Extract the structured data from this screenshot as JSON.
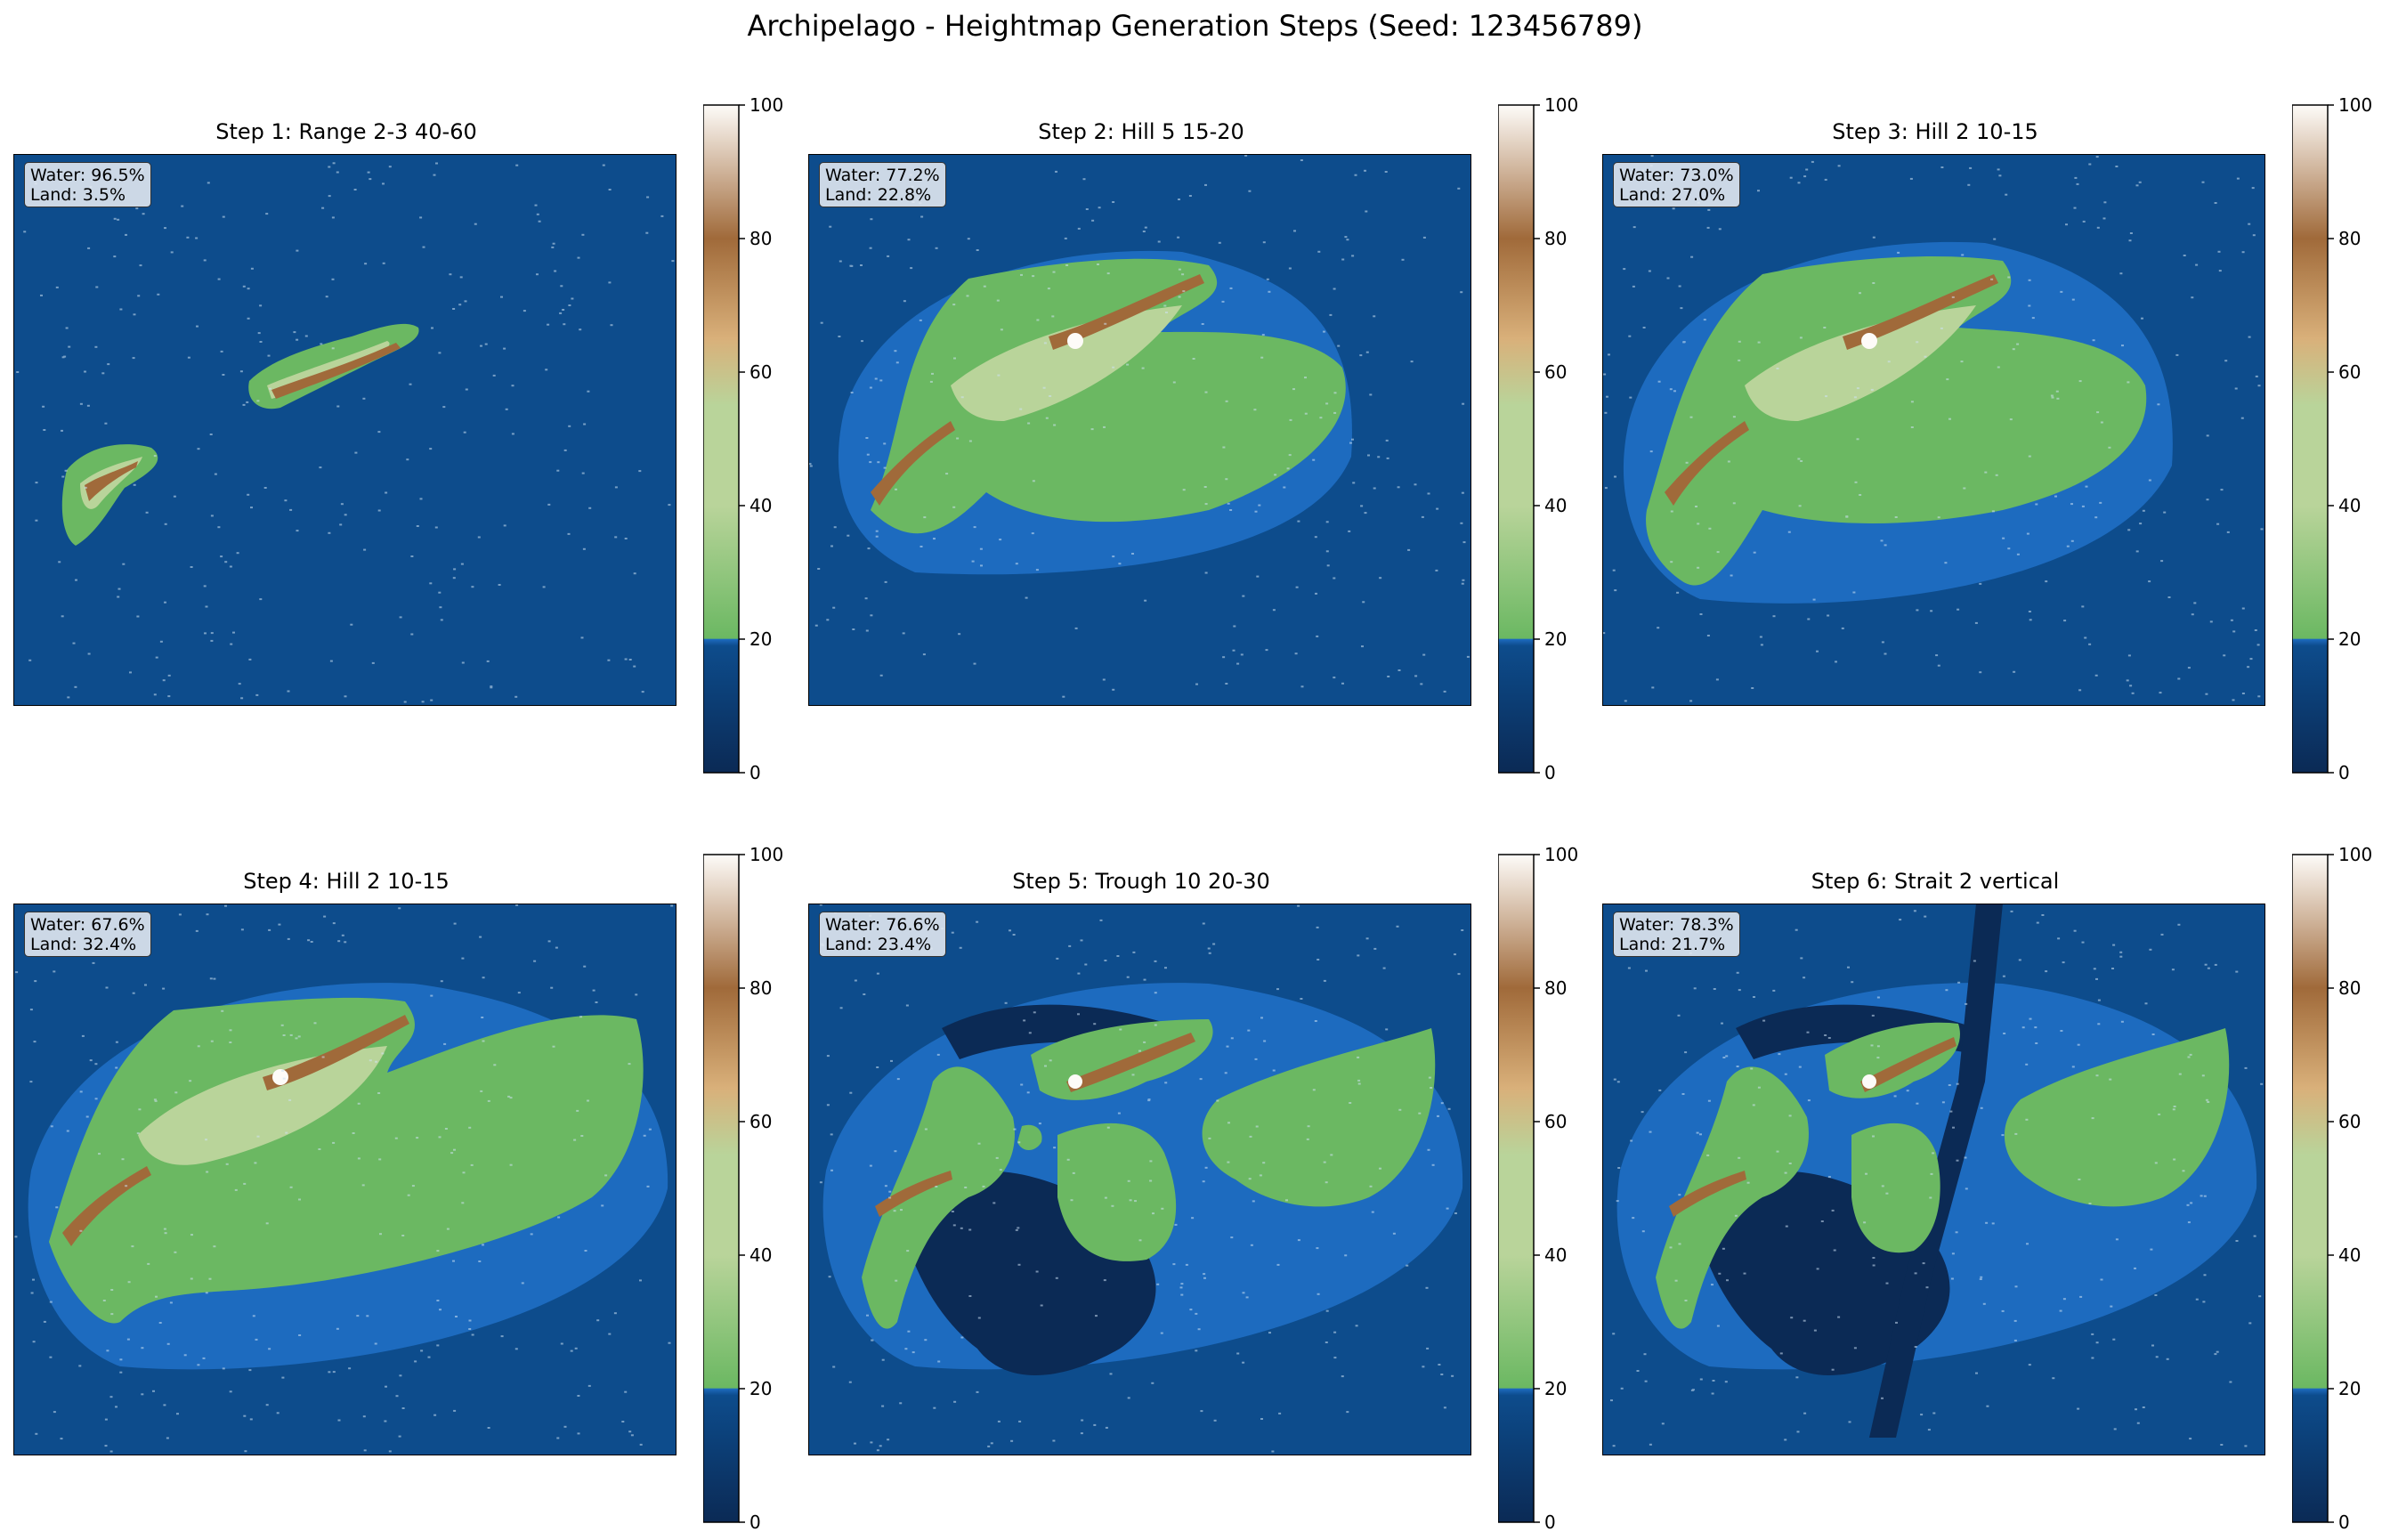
{
  "title": "Archipelago - Heightmap Generation Steps (Seed: 123456789)",
  "colorbar": {
    "ticks": [
      "0",
      "20",
      "40",
      "60",
      "80",
      "100"
    ],
    "range": [
      0,
      100
    ],
    "sea_level": 20
  },
  "colors": {
    "deep_water": "#0b2a55",
    "water": "#0d4c8c",
    "shallow": "#1d6bbf",
    "lowland": "#6bb862",
    "midland": "#b9d49a",
    "highland": "#d9b07a",
    "mountain": "#a06a3a",
    "peak": "#fdfbf8"
  },
  "chart_data": [
    {
      "type": "heatmap",
      "title": "Step 1: Range 2-3 40-60",
      "stats": {
        "water": "Water: 96.5%",
        "land": "Land: 3.5%"
      },
      "water_pct": 96.5,
      "land_pct": 3.5,
      "zlim": [
        0,
        100
      ],
      "colorbar_ticks": [
        0,
        20,
        40,
        60,
        80,
        100
      ]
    },
    {
      "type": "heatmap",
      "title": "Step 2: Hill 5 15-20",
      "stats": {
        "water": "Water: 77.2%",
        "land": "Land: 22.8%"
      },
      "water_pct": 77.2,
      "land_pct": 22.8,
      "zlim": [
        0,
        100
      ],
      "colorbar_ticks": [
        0,
        20,
        40,
        60,
        80,
        100
      ]
    },
    {
      "type": "heatmap",
      "title": "Step 3: Hill 2 10-15",
      "stats": {
        "water": "Water: 73.0%",
        "land": "Land: 27.0%"
      },
      "water_pct": 73.0,
      "land_pct": 27.0,
      "zlim": [
        0,
        100
      ],
      "colorbar_ticks": [
        0,
        20,
        40,
        60,
        80,
        100
      ]
    },
    {
      "type": "heatmap",
      "title": "Step 4: Hill 2 10-15",
      "stats": {
        "water": "Water: 67.6%",
        "land": "Land: 32.4%"
      },
      "water_pct": 67.6,
      "land_pct": 32.4,
      "zlim": [
        0,
        100
      ],
      "colorbar_ticks": [
        0,
        20,
        40,
        60,
        80,
        100
      ]
    },
    {
      "type": "heatmap",
      "title": "Step 5: Trough 10 20-30",
      "stats": {
        "water": "Water: 76.6%",
        "land": "Land: 23.4%"
      },
      "water_pct": 76.6,
      "land_pct": 23.4,
      "zlim": [
        0,
        100
      ],
      "colorbar_ticks": [
        0,
        20,
        40,
        60,
        80,
        100
      ]
    },
    {
      "type": "heatmap",
      "title": "Step 6: Strait 2 vertical",
      "stats": {
        "water": "Water: 78.3%",
        "land": "Land: 21.7%"
      },
      "water_pct": 78.3,
      "land_pct": 21.7,
      "zlim": [
        0,
        100
      ],
      "colorbar_ticks": [
        0,
        20,
        40,
        60,
        80,
        100
      ]
    }
  ]
}
